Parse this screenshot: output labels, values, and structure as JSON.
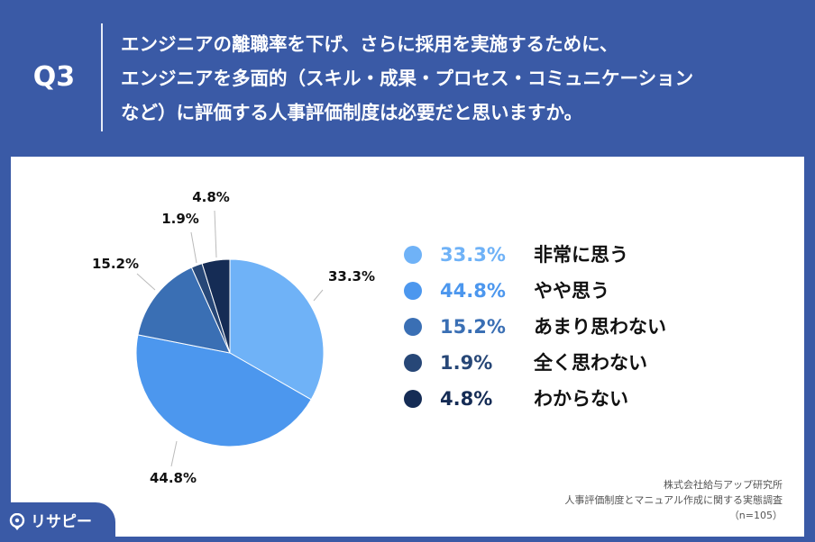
{
  "header": {
    "q_label": "Q3",
    "question_lines": [
      "エンジニアの離職率を下げ、さらに採用を実施するために、",
      "エンジニアを多面的（スキル・成果・プロセス・コミュニケーション",
      "など）に評価する人事評価制度は必要だと思いますか。"
    ]
  },
  "chart_data": {
    "type": "pie",
    "title": "",
    "slices": [
      {
        "label": "非常に思う",
        "value": 33.3,
        "pct_label": "33.3%",
        "color": "#6fb2f7"
      },
      {
        "label": "やや思う",
        "value": 44.8,
        "pct_label": "44.8%",
        "color": "#4c97ee"
      },
      {
        "label": "あまり思わない",
        "value": 15.2,
        "pct_label": "15.2%",
        "color": "#3a6fb4"
      },
      {
        "label": "全く思わない",
        "value": 1.9,
        "pct_label": "1.9%",
        "color": "#274777"
      },
      {
        "label": "わからない",
        "value": 4.8,
        "pct_label": "4.8%",
        "color": "#152c55"
      }
    ],
    "start_angle_deg": 0,
    "direction": "clockwise",
    "legend_position": "right"
  },
  "source": {
    "lines": [
      "株式会社給与アップ研究所",
      "人事評価制度とマニュアル作成に関する実態調査",
      "（n=105）"
    ]
  },
  "logo": {
    "text": "リサピー",
    "icon": "pin-icon",
    "color": "#ffffff"
  }
}
